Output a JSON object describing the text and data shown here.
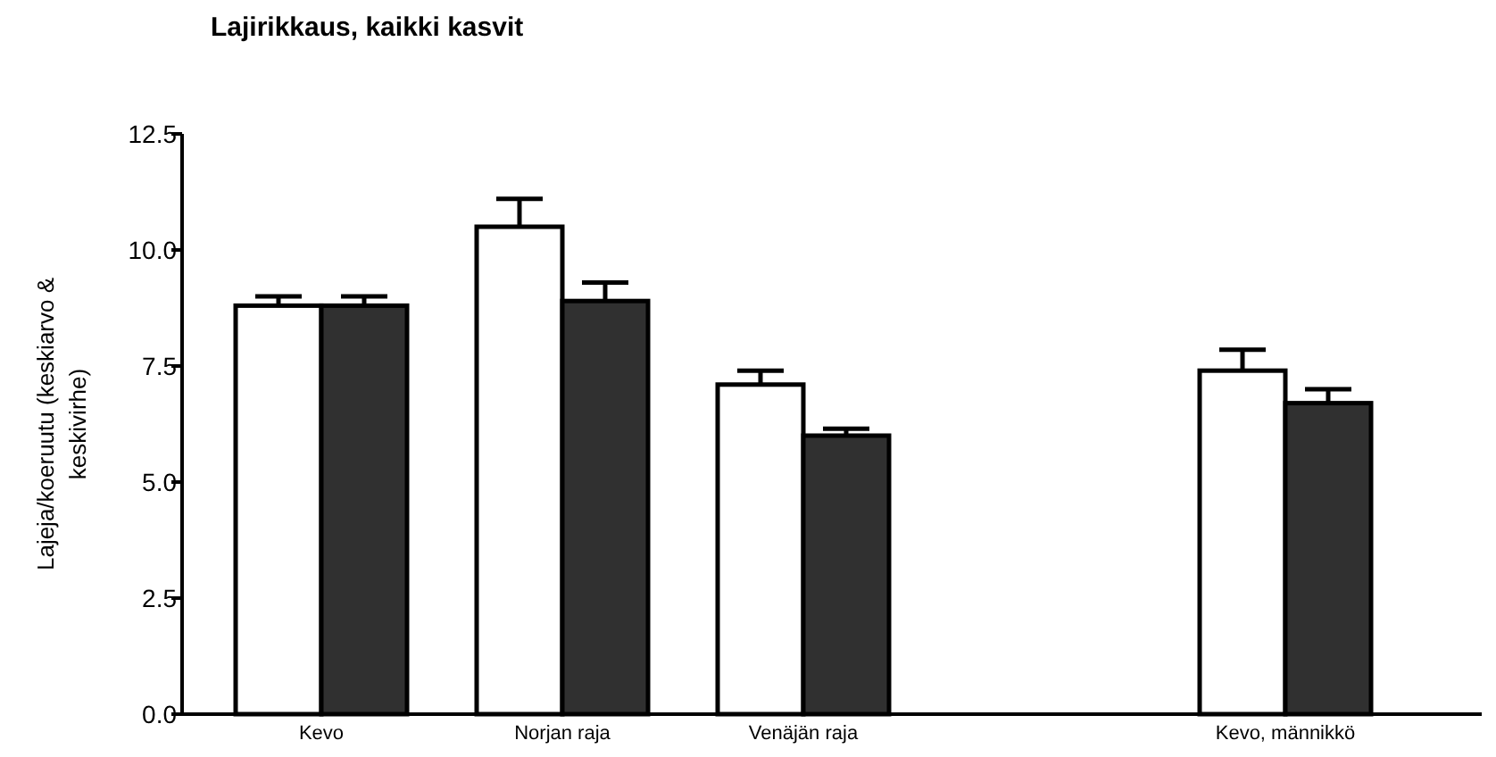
{
  "chart_data": {
    "type": "bar",
    "title": "Lajirikkaus, kaikki kasvit",
    "ylabel": "Lajeja/koeruutu (keskiarvo & keskivirhe)",
    "categories": [
      "Kevo",
      "Norjan raja",
      "Venäjän raja",
      null,
      "Kevo, männikkö"
    ],
    "series": [
      {
        "color": "#ffffff",
        "values": [
          8.8,
          10.5,
          7.1,
          null,
          7.4
        ],
        "errors": [
          0.2,
          0.6,
          0.3,
          null,
          0.45
        ]
      },
      {
        "color": "#303030",
        "values": [
          8.8,
          8.9,
          6.0,
          null,
          6.7
        ],
        "errors": [
          0.2,
          0.4,
          0.15,
          null,
          0.3
        ]
      }
    ],
    "ylim": [
      0,
      12.5
    ],
    "yticks": [
      {
        "value": 0,
        "label": "0.0"
      },
      2.5,
      {
        "value": 5,
        "label": "5.0"
      },
      7.5,
      {
        "value": 10,
        "label": "10.0"
      },
      12.5
    ],
    "grid": false
  }
}
